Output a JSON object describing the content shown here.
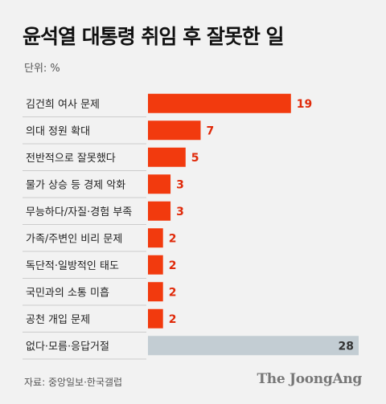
{
  "title": "윤석열 대통령 취임 후 잘못한 일",
  "unit": "단위: %",
  "source": "자료: 중앙일보·한국갤럽",
  "brand": "The JoongAng",
  "colors": {
    "bar": "#f23a0e",
    "bar_last": "#c3cdd3",
    "value_text": "#e02a0a",
    "value_text_last": "#333333",
    "divider": "#cccccc"
  },
  "chart_data": {
    "type": "bar",
    "orientation": "horizontal",
    "categories": [
      "김건희 여사 문제",
      "의대 정원 확대",
      "전반적으로 잘못했다",
      "물가 상승 등 경제 악화",
      "무능하다/자질·경험 부족",
      "가족/주변인 비리 문제",
      "독단적·일방적인 태도",
      "국민과의 소통 미흡",
      "공천 개입 문제",
      "없다·모름·응답거절"
    ],
    "values": [
      19,
      7,
      5,
      3,
      3,
      2,
      2,
      2,
      2,
      28
    ],
    "value_labels": [
      "19",
      "7",
      "5",
      "3",
      "3",
      "2",
      "2",
      "2",
      "2",
      "28"
    ],
    "xlim": [
      0,
      28
    ],
    "title": "윤석열 대통령 취임 후 잘못한 일",
    "xlabel": "",
    "ylabel": "",
    "grid": false,
    "legend": "none"
  }
}
